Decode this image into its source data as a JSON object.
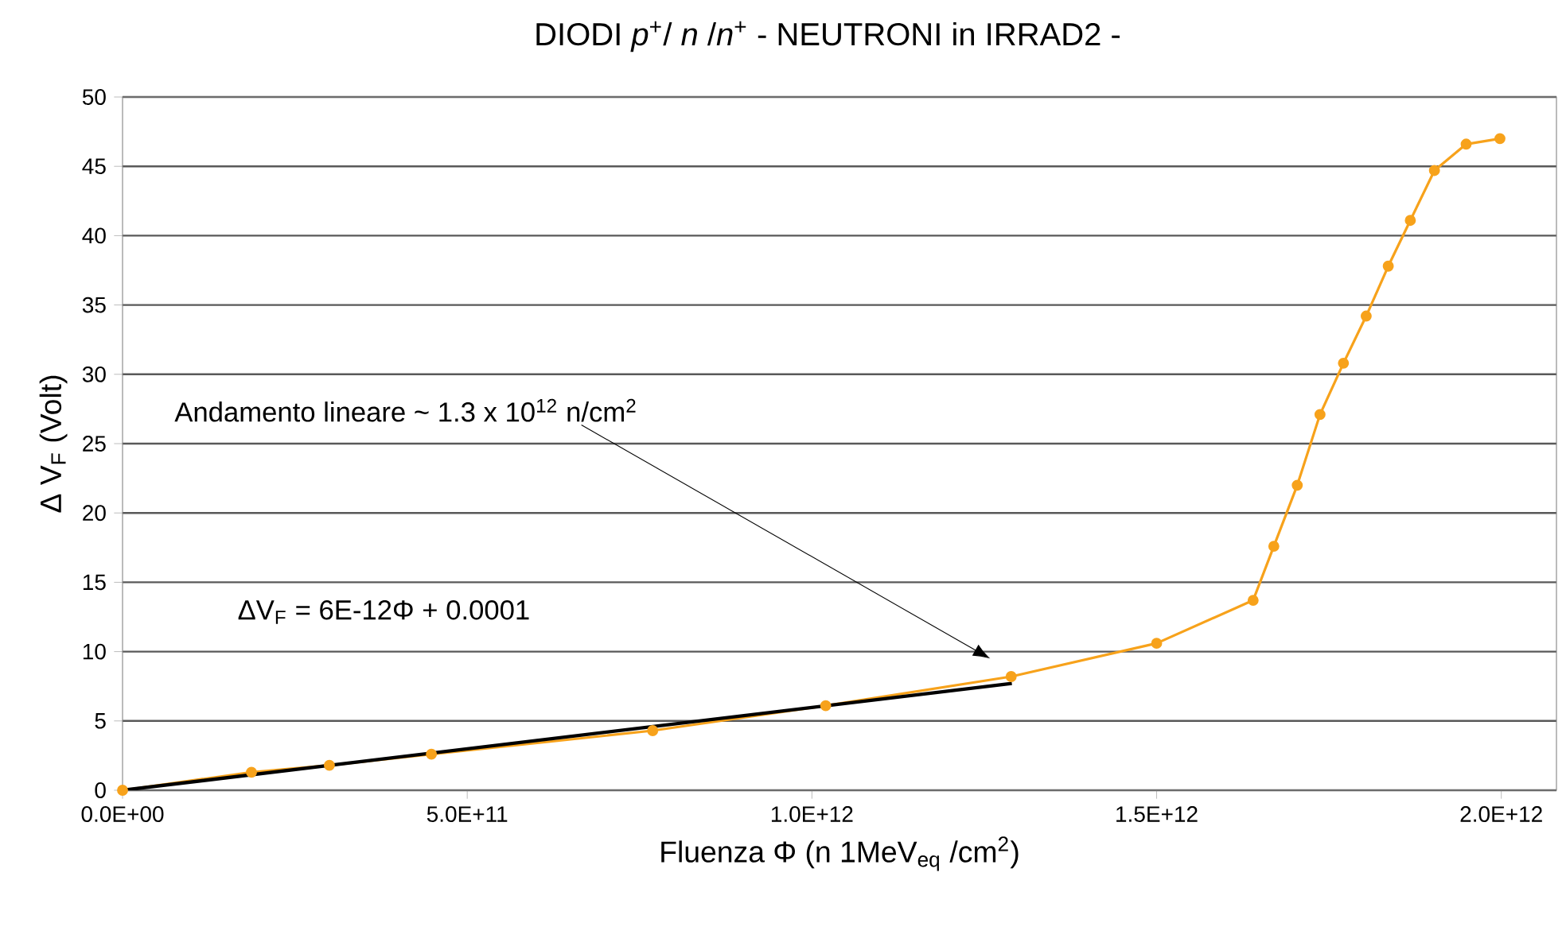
{
  "chart_data": {
    "type": "line",
    "title": "DIODI *p*$^{+}$/ *n* /*n*$^{+}$ - NEUTRONI in IRRAD2 -",
    "xlabel": "Fluenza Φ (n 1MeV$_{eq}$ /cm$^{2}$)",
    "ylabel": "Δ V$_{F}$ (Volt)",
    "series": [
      {
        "color": "#f7a21b",
        "marker": "circle",
        "x": [
          0,
          187000000000,
          300000000000,
          448000000000,
          769000000000,
          1020000000000,
          1289000000000,
          1500000000000,
          1640000000000,
          1670000000000,
          1704000000000,
          1737000000000,
          1771000000000,
          1804000000000,
          1836000000000,
          1868000000000,
          1903000000000,
          1949000000000,
          1998000000000
        ],
        "values": [
          0,
          1.3,
          1.8,
          2.6,
          4.3,
          6.1,
          8.2,
          10.6,
          13.7,
          17.6,
          22.0,
          27.1,
          30.8,
          34.2,
          37.8,
          41.1,
          44.7,
          46.6,
          47.0
        ]
      },
      {
        "color": "#000000",
        "marker": "none",
        "x": [
          0,
          1290000000000
        ],
        "values": [
          0,
          7.7
        ]
      }
    ],
    "xlim": [
      0,
      2080000000000
    ],
    "ylim": [
      0,
      50
    ],
    "xticks": [
      {
        "value": 0,
        "label": "0.0E+00"
      },
      {
        "value": 500000000000,
        "label": "5.0E+11"
      },
      {
        "value": 1000000000000,
        "label": "1.0E+12"
      },
      {
        "value": 1500000000000,
        "label": "1.5E+12"
      },
      {
        "value": 2000000000000,
        "label": "2.0E+12"
      }
    ],
    "yticks": [
      0,
      5,
      10,
      15,
      20,
      25,
      30,
      35,
      40,
      45,
      50
    ],
    "grid": "y",
    "line_style": "solid",
    "annotations": [
      "Andamento lineare ~ 1.3 x 10$^{12}$ n/cm$^{2}$",
      "ΔV$_{F}$ = 6E-12Φ + 0.0001"
    ]
  }
}
